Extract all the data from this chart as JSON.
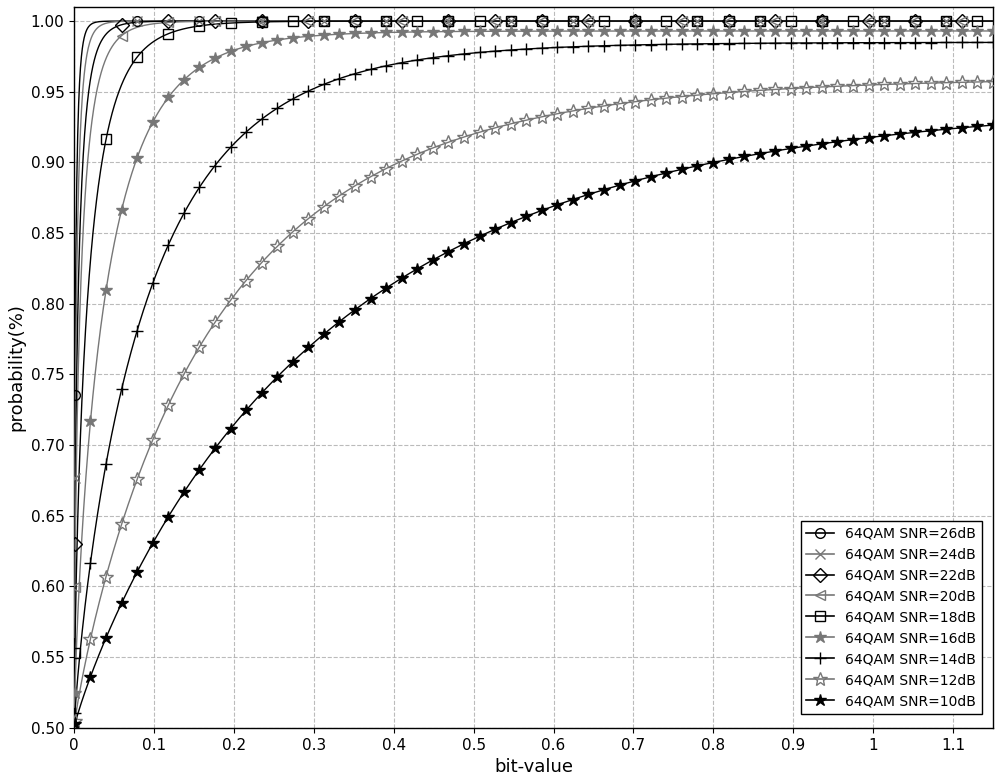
{
  "title": "",
  "xlabel": "bit-value",
  "ylabel": "probability(%)",
  "xlim": [
    0,
    1.15
  ],
  "ylim": [
    0.5,
    1.01
  ],
  "xticks": [
    0,
    0.1,
    0.2,
    0.3,
    0.4,
    0.5,
    0.6,
    0.7,
    0.8,
    0.9,
    1.0,
    1.1
  ],
  "yticks": [
    0.5,
    0.55,
    0.6,
    0.65,
    0.7,
    0.75,
    0.8,
    0.85,
    0.9,
    0.95,
    1.0
  ],
  "series": [
    {
      "label": "64QAM SNR=26dB",
      "snr": 26,
      "color": "#000000",
      "marker": "o",
      "markersize": 7,
      "open": true
    },
    {
      "label": "64QAM SNR=24dB",
      "snr": 24,
      "color": "#777777",
      "marker": "x",
      "markersize": 7,
      "open": false
    },
    {
      "label": "64QAM SNR=22dB",
      "snr": 22,
      "color": "#000000",
      "marker": "D",
      "markersize": 7,
      "open": true
    },
    {
      "label": "64QAM SNR=20dB",
      "snr": 20,
      "color": "#777777",
      "marker": "<",
      "markersize": 7,
      "open": true
    },
    {
      "label": "64QAM SNR=18dB",
      "snr": 18,
      "color": "#000000",
      "marker": "s",
      "markersize": 7,
      "open": true
    },
    {
      "label": "64QAM SNR=16dB",
      "snr": 16,
      "color": "#777777",
      "marker": "*",
      "markersize": 9,
      "open": false
    },
    {
      "label": "64QAM SNR=14dB",
      "snr": 14,
      "color": "#000000",
      "marker": "+",
      "markersize": 8,
      "open": false
    },
    {
      "label": "64QAM SNR=12dB",
      "snr": 12,
      "color": "#777777",
      "marker": "o",
      "markersize": 7,
      "open": true
    },
    {
      "label": "64QAM SNR=10dB",
      "snr": 10,
      "color": "#000000",
      "marker": "o",
      "markersize": 7,
      "open": true
    }
  ],
  "snr_params": {
    "26": [
      80,
      0.7,
      1.0
    ],
    "24": [
      55,
      0.7,
      1.0
    ],
    "22": [
      38,
      0.7,
      1.0
    ],
    "20": [
      28,
      0.7,
      1.0
    ],
    "18": [
      20,
      0.75,
      1.0
    ],
    "16": [
      13,
      0.8,
      0.993
    ],
    "14": [
      7.5,
      0.85,
      0.985
    ],
    "12": [
      4.5,
      0.88,
      0.96
    ],
    "10": [
      2.8,
      0.9,
      0.945
    ]
  },
  "background_color": "#ffffff",
  "grid_color": "#aaaaaa",
  "figsize": [
    10.0,
    7.83
  ],
  "dpi": 100
}
